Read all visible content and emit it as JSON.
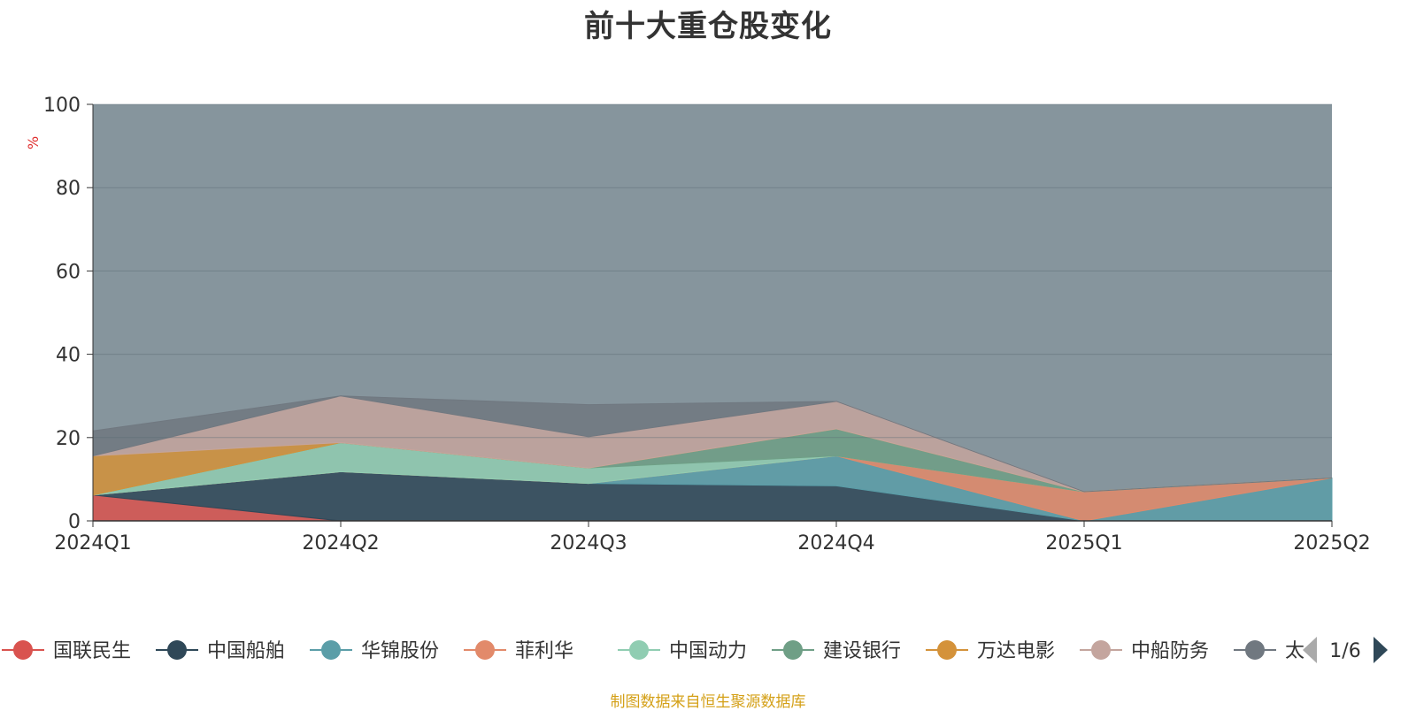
{
  "title": "前十大重仓股变化",
  "unit_label": "%",
  "footer": "制图数据来自恒生聚源数据库",
  "legend_page": "1/6",
  "chart_data": {
    "type": "area",
    "stacked": true,
    "title": "前十大重仓股变化",
    "ylabel": "%",
    "ylim": [
      0,
      100
    ],
    "yticks": [
      "0",
      "20",
      "40",
      "60",
      "80",
      "100"
    ],
    "categories": [
      "2024Q1",
      "2024Q2",
      "2024Q3",
      "2024Q4",
      "2025Q1",
      "2025Q2"
    ],
    "grid": true,
    "legend_position": "bottom",
    "series": [
      {
        "name": "国联民生",
        "color": "#d9534f",
        "values": [
          6.2,
          0,
          0,
          0,
          0,
          0
        ]
      },
      {
        "name": "中国船舶",
        "color": "#2f4858",
        "values": [
          0,
          11.8,
          9.0,
          8.4,
          0,
          0
        ]
      },
      {
        "name": "华锦股份",
        "color": "#5b9ea8",
        "values": [
          0,
          0,
          0,
          7.2,
          0,
          10.3
        ]
      },
      {
        "name": "菲利华",
        "color": "#e28a6a",
        "values": [
          0,
          0,
          0,
          0,
          7.0,
          0
        ]
      },
      {
        "name": "中国动力",
        "color": "#90cdb2",
        "values": [
          0,
          7.0,
          3.7,
          0,
          0,
          0
        ]
      },
      {
        "name": "建设银行",
        "color": "#6f9f86",
        "values": [
          0,
          0,
          0,
          6.5,
          0,
          0
        ]
      },
      {
        "name": "万达电影",
        "color": "#d4923a",
        "values": [
          9.4,
          0,
          0,
          0,
          0,
          0
        ]
      },
      {
        "name": "中船防务",
        "color": "#c4a59e",
        "values": [
          0,
          11.2,
          7.5,
          6.6,
          0,
          0
        ]
      },
      {
        "name": "太",
        "color": "#707880",
        "values": [
          6.0,
          0,
          7.7,
          0,
          0,
          0
        ]
      }
    ],
    "legend_visible": [
      "国联民生",
      "中国船舶",
      "华锦股份",
      "菲利华",
      "中国动力",
      "建设银行",
      "万达电影",
      "中船防务",
      "太"
    ]
  }
}
